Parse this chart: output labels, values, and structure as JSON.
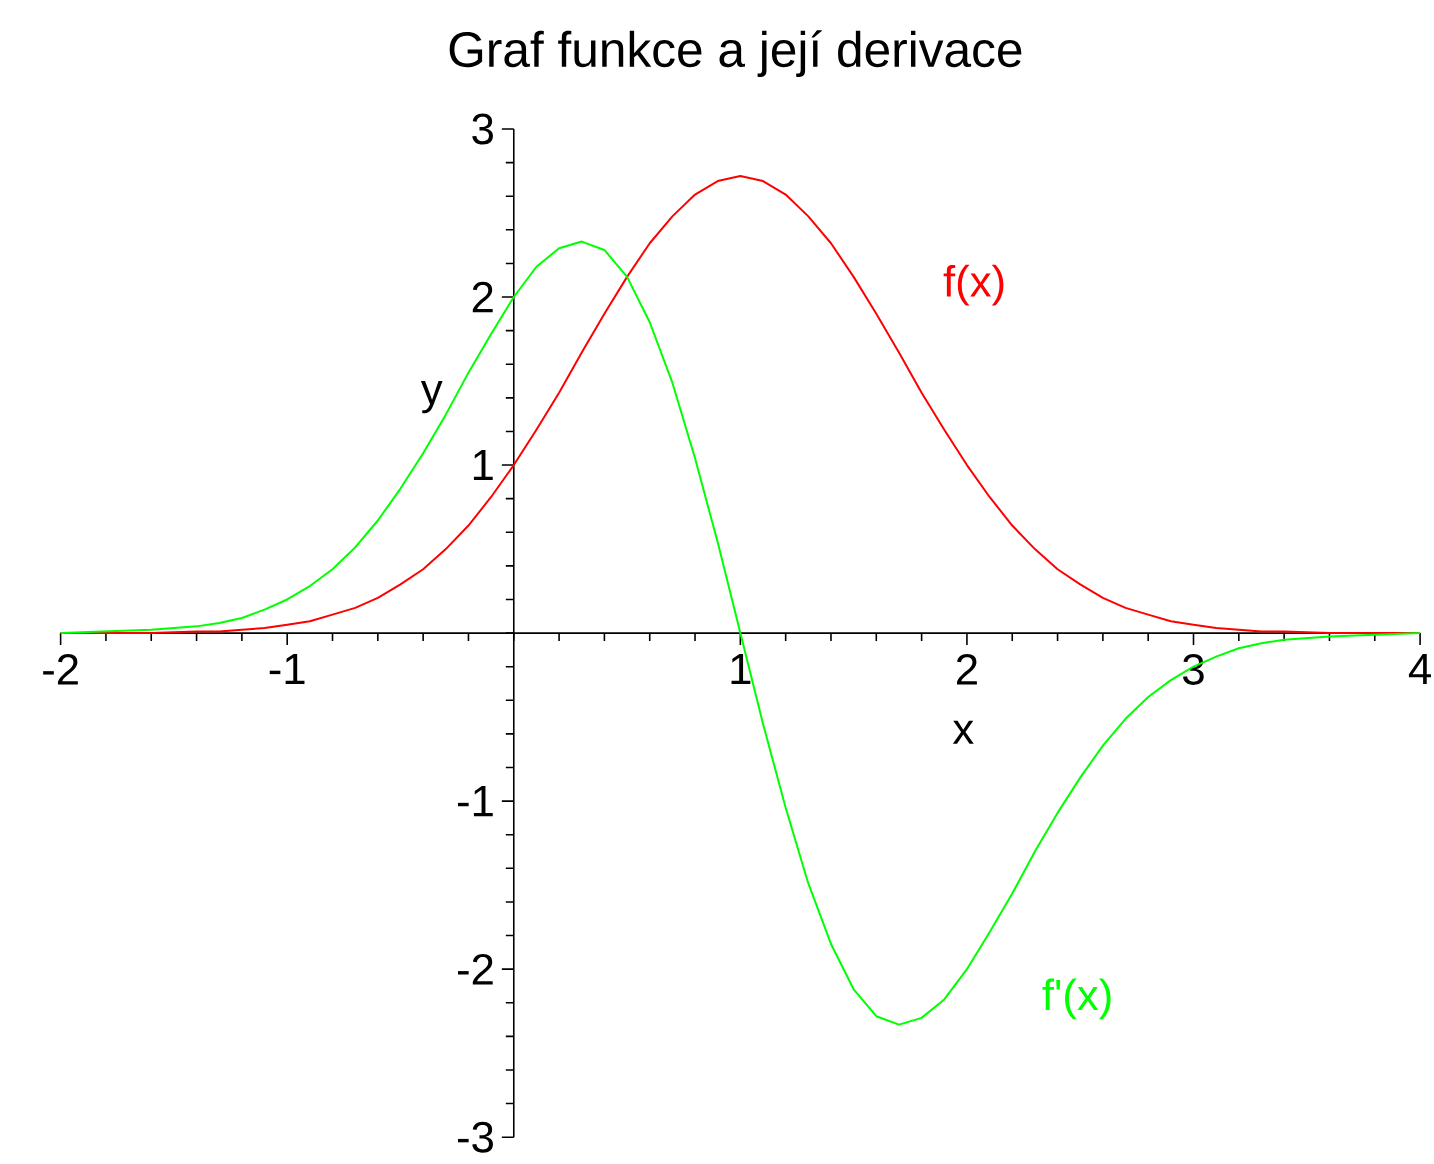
{
  "chart_data": {
    "type": "line",
    "title": "Graf funkce a její derivace",
    "xlabel": "x",
    "ylabel": "y",
    "x": [
      -2,
      -1.6,
      -1.4,
      -1.3,
      -1.2,
      -1.1,
      -1,
      -0.9,
      -0.8,
      -0.7,
      -0.6,
      -0.5,
      -0.4,
      -0.3,
      -0.2,
      -0.1,
      0,
      0.1,
      0.2,
      0.3,
      0.4,
      0.5,
      0.6,
      0.7,
      0.8,
      0.9,
      1,
      1.1,
      1.2,
      1.3,
      1.4,
      1.5,
      1.6,
      1.7,
      1.8,
      1.9,
      2,
      2.1,
      2.2,
      2.3,
      2.4,
      2.5,
      2.6,
      2.7,
      2.8,
      2.9,
      3,
      3.1,
      3.2,
      3.3,
      3.4,
      3.6,
      4
    ],
    "series": [
      {
        "name": "f(x)",
        "color": "#ff0000",
        "values": [
          0,
          0,
          0.01,
          0.01,
          0.02,
          0.03,
          0.05,
          0.07,
          0.11,
          0.15,
          0.21,
          0.29,
          0.38,
          0.5,
          0.64,
          0.81,
          1,
          1.21,
          1.43,
          1.67,
          1.9,
          2.12,
          2.32,
          2.48,
          2.61,
          2.69,
          2.72,
          2.69,
          2.61,
          2.48,
          2.32,
          2.12,
          1.9,
          1.67,
          1.43,
          1.21,
          1,
          0.81,
          0.64,
          0.5,
          0.38,
          0.29,
          0.21,
          0.15,
          0.11,
          0.07,
          0.05,
          0.03,
          0.02,
          0.01,
          0.01,
          0,
          0
        ]
      },
      {
        "name": "f'(x)",
        "color": "#00ff00",
        "values": [
          0,
          0.02,
          0.04,
          0.06,
          0.09,
          0.14,
          0.2,
          0.28,
          0.38,
          0.51,
          0.67,
          0.86,
          1.07,
          1.3,
          1.55,
          1.78,
          2,
          2.18,
          2.29,
          2.33,
          2.28,
          2.12,
          1.85,
          1.49,
          1.04,
          0.54,
          0,
          -0.54,
          -1.04,
          -1.49,
          -1.85,
          -2.12,
          -2.28,
          -2.33,
          -2.29,
          -2.18,
          -2,
          -1.78,
          -1.55,
          -1.3,
          -1.07,
          -0.86,
          -0.67,
          -0.51,
          -0.38,
          -0.28,
          -0.2,
          -0.14,
          -0.09,
          -0.06,
          -0.04,
          -0.02,
          0
        ]
      }
    ],
    "xlim": [
      -2,
      4
    ],
    "ylim": [
      -3,
      3
    ],
    "xticks": [
      -2,
      -1,
      1,
      2,
      3,
      4
    ],
    "yticks": [
      -3,
      -2,
      -1,
      1,
      2,
      3
    ],
    "marker": "none",
    "line_style": "solid"
  }
}
